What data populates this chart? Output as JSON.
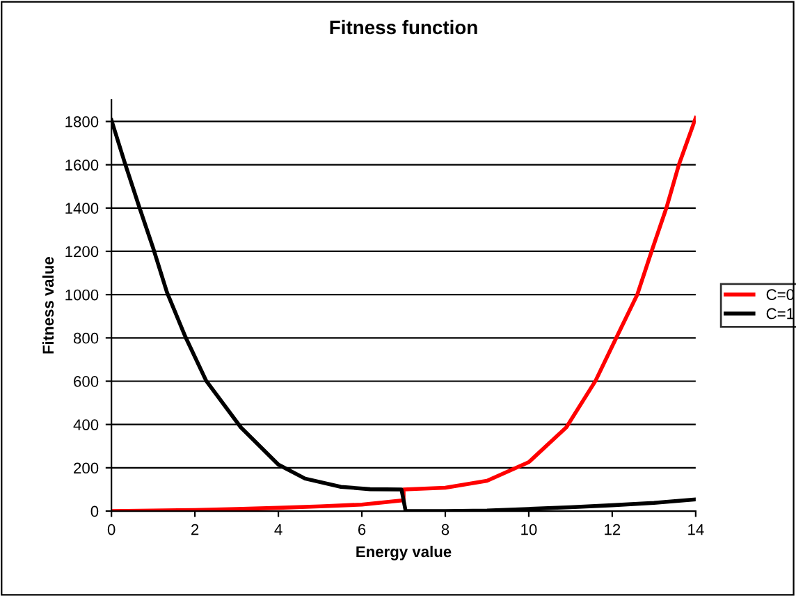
{
  "chart_data": {
    "type": "line",
    "title": "Fitness function",
    "xlabel": "Energy value",
    "ylabel": "Fitness value",
    "xlim": [
      0,
      14
    ],
    "xticks": [
      0,
      2,
      4,
      6,
      8,
      10,
      12,
      14
    ],
    "ylim": [
      0,
      1900
    ],
    "yticks": [
      0,
      200,
      400,
      600,
      800,
      1000,
      1200,
      1400,
      1600,
      1800
    ],
    "grid": "y",
    "legend": "right",
    "marker": "none",
    "line_style": "solid",
    "series": [
      {
        "name": "C=0",
        "color": "#ff0000",
        "x": [
          0,
          1,
          2,
          3,
          4,
          5,
          6,
          7,
          7,
          8,
          9,
          10,
          10.9,
          11.6,
          12.1,
          12.6,
          12.95,
          13.3,
          13.6,
          14
        ],
        "values": [
          0,
          2,
          5,
          10,
          15,
          22,
          30,
          50,
          100,
          108,
          140,
          226,
          387,
          602,
          802,
          1000,
          1204,
          1402,
          1602,
          1817
        ]
      },
      {
        "name": "C=1",
        "color": "#000000",
        "x": [
          0,
          0.33,
          0.66,
          1,
          1.33,
          1.77,
          2.27,
          3.1,
          4,
          4.64,
          5.5,
          6.2,
          6.95,
          7.05,
          8,
          9,
          10,
          11,
          12,
          13,
          14
        ],
        "values": [
          1806,
          1603,
          1409,
          1215,
          1011,
          806,
          602,
          387,
          215,
          150,
          112,
          101,
          100,
          0,
          0,
          2,
          10,
          18,
          27,
          38,
          54
        ]
      }
    ]
  }
}
